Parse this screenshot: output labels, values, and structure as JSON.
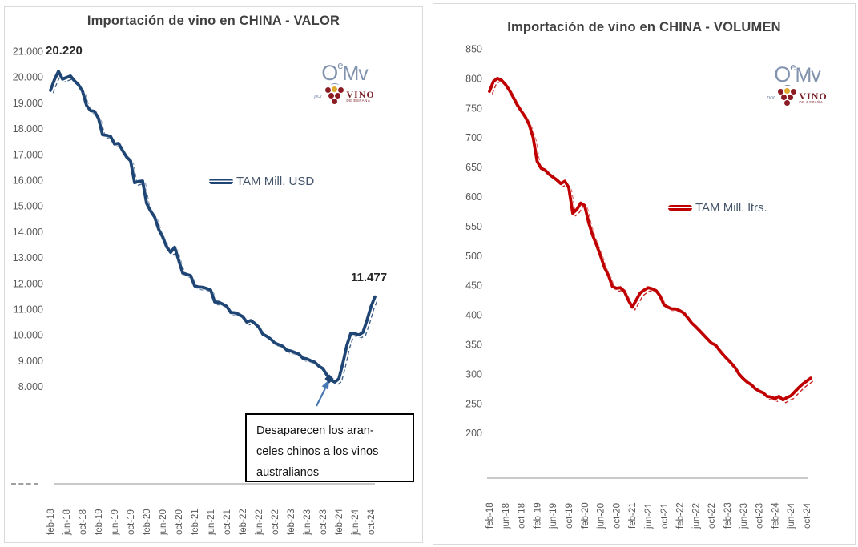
{
  "chart_data": [
    {
      "id": "valor",
      "type": "line",
      "title": "Importación de vino en CHINA - VALOR",
      "legend": "TAM Mill. USD",
      "frequency": "monthly",
      "x_start": "feb-18",
      "x_end": "nov-24",
      "x_tick_labels": [
        "feb-18",
        "jun-18",
        "oct-18",
        "feb-19",
        "jun-19",
        "oct-19",
        "feb-20",
        "jun-20",
        "oct-20",
        "feb-21",
        "jun-21",
        "oct-21",
        "feb-22",
        "jun-22",
        "oct-22",
        "feb-23",
        "jun-23",
        "oct-23",
        "feb-24",
        "jun-24",
        "oct-24"
      ],
      "y_tick_labels": [
        "21.000",
        "20.000",
        "19.000",
        "18.000",
        "17.000",
        "16.000",
        "15.000",
        "14.000",
        "13.000",
        "12.000",
        "11.000",
        "10.000",
        "9.000",
        "8.000"
      ],
      "ylabel": "",
      "xlabel": "",
      "grid": false,
      "legend_position": "center-left-of-plot",
      "labels": {
        "peak": "20.220",
        "end": "11.477"
      },
      "series": [
        {
          "name": "TAM Mill. USD",
          "color": "#1F4575",
          "values": [
            19480,
            19900,
            20220,
            19920,
            19980,
            20040,
            19850,
            19700,
            19450,
            18900,
            18700,
            18670,
            18390,
            17760,
            17740,
            17700,
            17400,
            17430,
            17150,
            16900,
            16750,
            15900,
            15950,
            15970,
            15100,
            14800,
            14570,
            14100,
            13800,
            13420,
            13200,
            13400,
            12900,
            12400,
            12350,
            12300,
            11900,
            11860,
            11850,
            11800,
            11740,
            11280,
            11270,
            11200,
            11110,
            10870,
            10860,
            10800,
            10710,
            10500,
            10560,
            10450,
            10300,
            10030,
            9950,
            9840,
            9690,
            9620,
            9560,
            9410,
            9380,
            9320,
            9260,
            9100,
            9070,
            9000,
            8940,
            8790,
            8700,
            8450,
            8250,
            8170,
            8300,
            8900,
            9600,
            10070,
            10050,
            10000,
            10100,
            10560,
            11090,
            11477
          ]
        }
      ]
    },
    {
      "id": "volumen",
      "type": "line",
      "title": "Importación de vino en CHINA - VOLUMEN",
      "legend": "TAM Mill. ltrs.",
      "frequency": "monthly",
      "x_start": "feb-18",
      "x_end": "nov-24",
      "x_tick_labels": [
        "feb-18",
        "jun-18",
        "oct-18",
        "feb-19",
        "jun-19",
        "oct-19",
        "feb-20",
        "jun-20",
        "oct-20",
        "feb-21",
        "jun-21",
        "oct-21",
        "feb-22",
        "jun-22",
        "oct-22",
        "feb-23",
        "jun-23",
        "oct-23",
        "feb-24",
        "jun-24",
        "oct-24"
      ],
      "y_tick_labels": [
        "850",
        "800",
        "750",
        "700",
        "650",
        "600",
        "550",
        "500",
        "450",
        "400",
        "350",
        "300",
        "250",
        "200"
      ],
      "ylabel": "",
      "xlabel": "",
      "grid": false,
      "legend_position": "center-right-of-plot",
      "labels": {},
      "series": [
        {
          "name": "TAM Mill. ltrs.",
          "color": "#C00000",
          "values": [
            778,
            795,
            800,
            797,
            790,
            780,
            768,
            755,
            745,
            735,
            722,
            700,
            660,
            648,
            645,
            638,
            633,
            628,
            622,
            626,
            615,
            572,
            578,
            589,
            585,
            556,
            535,
            518,
            500,
            480,
            467,
            448,
            445,
            446,
            440,
            425,
            413,
            425,
            437,
            442,
            446,
            444,
            441,
            432,
            417,
            413,
            410,
            410,
            407,
            403,
            395,
            386,
            380,
            373,
            366,
            359,
            352,
            349,
            340,
            332,
            325,
            318,
            310,
            299,
            292,
            286,
            282,
            275,
            271,
            268,
            262,
            261,
            258,
            262,
            256,
            260,
            263,
            270,
            277,
            283,
            288,
            293
          ]
        }
      ]
    }
  ],
  "annotation": {
    "lines": [
      "Desaparecen los aran-",
      "celes chinos a los vinos",
      "australianos"
    ]
  },
  "logo": {
    "brand_o": "O",
    "brand_e": "e",
    "brand_mv": "Mv",
    "por": "por",
    "vino": "VINO",
    "de_espana": "DE ESPAÑA"
  }
}
